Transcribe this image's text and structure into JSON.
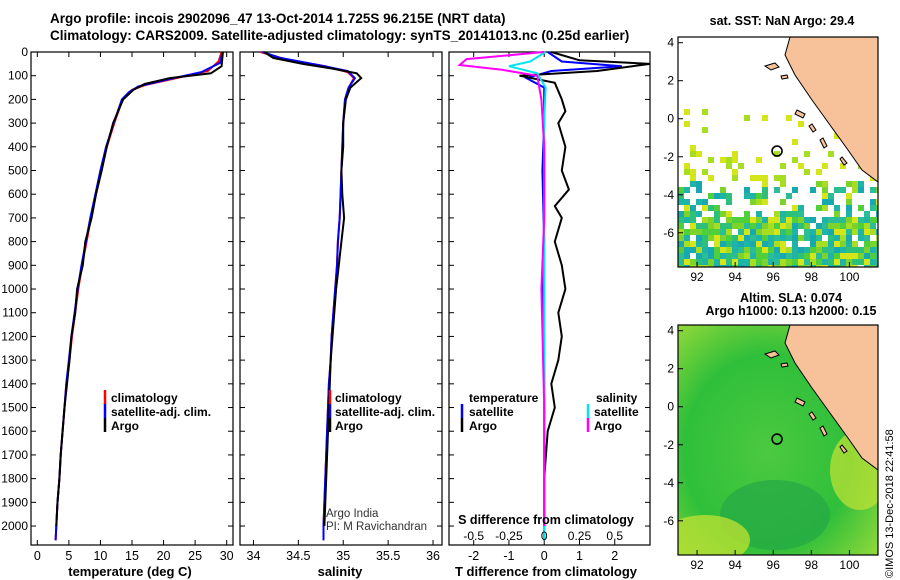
{
  "title_line1": "Argo profile: incois 2902096_47 13-Oct-2014 1.725S 96.215E (NRT data)",
  "title_line2": "Climatology: CARS2009. Satellite-adjusted climatology: synTS_20141013.nc (0.25d earlier)",
  "sst_label": "sat. SST: NaN Argo: 29.4",
  "altim_label1": "Altim. SLA: 0.074",
  "altim_label2": "Argo h1000: 0.13 h2000: 0.15",
  "imos_stamp": "©IMOS 13-Dec-2018 22:41:58",
  "credit_line1": "Argo India",
  "credit_line2": "PI: M Ravichandran",
  "colors": {
    "climatology": "#ff0000",
    "satellite": "#0000ff",
    "argo": "#000000",
    "salinity_sat": "#00e5ee",
    "salinity_argo": "#ff00ff",
    "land": "#f7c299",
    "float_marker": "#000000"
  },
  "chart_data": [
    {
      "type": "line",
      "name": "temperature",
      "xlabel": "temperature (deg C)",
      "ylabel": "",
      "xlim": [
        -1,
        31
      ],
      "ylim": [
        2080,
        0
      ],
      "xticks": [
        0,
        5,
        10,
        15,
        20,
        25,
        30
      ],
      "yticks": [
        0,
        100,
        200,
        300,
        400,
        500,
        600,
        700,
        800,
        900,
        1000,
        1100,
        1200,
        1300,
        1400,
        1500,
        1600,
        1700,
        1800,
        1900,
        2000
      ],
      "legend": [
        "climatology",
        "satellite-adj. clim.",
        "Argo"
      ],
      "series": [
        {
          "name": "climatology",
          "color": "#ff0000",
          "points": [
            [
              29.2,
              0
            ],
            [
              28.7,
              40
            ],
            [
              27,
              80
            ],
            [
              22,
              110
            ],
            [
              17,
              140
            ],
            [
              15,
              160
            ],
            [
              13.5,
              200
            ],
            [
              12.2,
              300
            ],
            [
              11,
              400
            ],
            [
              10.1,
              500
            ],
            [
              9.3,
              600
            ],
            [
              8.5,
              700
            ],
            [
              7.8,
              800
            ],
            [
              7.1,
              900
            ],
            [
              6.5,
              1000
            ],
            [
              6,
              1100
            ],
            [
              5.5,
              1200
            ],
            [
              5.1,
              1300
            ],
            [
              4.6,
              1400
            ],
            [
              4.3,
              1500
            ],
            [
              4,
              1600
            ],
            [
              3.7,
              1700
            ],
            [
              3.5,
              1800
            ],
            [
              3.2,
              1900
            ],
            [
              3,
              2000
            ],
            [
              2.9,
              2060
            ]
          ]
        },
        {
          "name": "satellite-adj. clim.",
          "color": "#0000ff",
          "points": [
            [
              29.3,
              0
            ],
            [
              29,
              45
            ],
            [
              26,
              85
            ],
            [
              20,
              120
            ],
            [
              16,
              145
            ],
            [
              14.5,
              170
            ],
            [
              13.4,
              200
            ],
            [
              12.1,
              300
            ],
            [
              10.9,
              400
            ],
            [
              10,
              500
            ],
            [
              9.2,
              600
            ],
            [
              8.4,
              700
            ],
            [
              7.7,
              800
            ],
            [
              7,
              900
            ],
            [
              6.4,
              1000
            ],
            [
              5.9,
              1100
            ],
            [
              5.4,
              1200
            ],
            [
              5,
              1300
            ],
            [
              4.6,
              1400
            ],
            [
              4.3,
              1500
            ],
            [
              4,
              1600
            ],
            [
              3.7,
              1700
            ],
            [
              3.5,
              1800
            ],
            [
              3.2,
              1900
            ],
            [
              3,
              2000
            ],
            [
              2.9,
              2060
            ]
          ]
        },
        {
          "name": "Argo",
          "color": "#000000",
          "points": [
            [
              29.4,
              0
            ],
            [
              29.2,
              60
            ],
            [
              27.5,
              90
            ],
            [
              21,
              110
            ],
            [
              17,
              135
            ],
            [
              15.2,
              160
            ],
            [
              13.6,
              200
            ],
            [
              12,
              300
            ],
            [
              11,
              400
            ],
            [
              10.2,
              500
            ],
            [
              9.3,
              600
            ],
            [
              8.6,
              700
            ],
            [
              7.6,
              800
            ],
            [
              7.2,
              900
            ],
            [
              6.3,
              1000
            ],
            [
              6,
              1100
            ],
            [
              5.4,
              1200
            ],
            [
              5.1,
              1300
            ],
            [
              4.7,
              1400
            ],
            [
              4.3,
              1500
            ],
            [
              4,
              1600
            ],
            [
              3.7,
              1700
            ],
            [
              3.5,
              1800
            ],
            [
              3.2,
              1900
            ],
            [
              3,
              2000
            ]
          ]
        }
      ]
    },
    {
      "type": "line",
      "name": "salinity",
      "xlabel": "salinity",
      "ylabel": "",
      "xlim": [
        33.85,
        36.1
      ],
      "ylim": [
        2080,
        0
      ],
      "xticks": [
        34,
        34.5,
        35,
        35.5,
        36
      ],
      "legend": [
        "climatology",
        "satellite-adj. clim.",
        "Argo"
      ],
      "series": [
        {
          "name": "climatology",
          "color": "#ff0000",
          "points": [
            [
              34.08,
              0
            ],
            [
              34.35,
              30
            ],
            [
              34.8,
              60
            ],
            [
              35.05,
              85
            ],
            [
              35.12,
              110
            ],
            [
              35.06,
              150
            ],
            [
              35.02,
              200
            ],
            [
              35,
              300
            ],
            [
              34.99,
              400
            ],
            [
              34.98,
              500
            ],
            [
              34.97,
              600
            ],
            [
              34.96,
              700
            ],
            [
              34.94,
              800
            ],
            [
              34.93,
              900
            ],
            [
              34.91,
              1000
            ],
            [
              34.89,
              1100
            ],
            [
              34.87,
              1200
            ],
            [
              34.86,
              1300
            ],
            [
              34.84,
              1400
            ],
            [
              34.83,
              1500
            ],
            [
              34.82,
              1600
            ],
            [
              34.81,
              1700
            ],
            [
              34.8,
              1800
            ],
            [
              34.79,
              1900
            ],
            [
              34.78,
              2000
            ],
            [
              34.78,
              2060
            ]
          ]
        },
        {
          "name": "satellite-adj. clim.",
          "color": "#0000ff",
          "points": [
            [
              34.1,
              0
            ],
            [
              34.3,
              25
            ],
            [
              34.72,
              55
            ],
            [
              35.05,
              80
            ],
            [
              35.13,
              110
            ],
            [
              35.06,
              150
            ],
            [
              35.02,
              200
            ],
            [
              35,
              300
            ],
            [
              34.99,
              400
            ],
            [
              34.98,
              500
            ],
            [
              34.97,
              600
            ],
            [
              34.96,
              700
            ],
            [
              34.94,
              800
            ],
            [
              34.93,
              900
            ],
            [
              34.91,
              1000
            ],
            [
              34.89,
              1100
            ],
            [
              34.87,
              1200
            ],
            [
              34.86,
              1300
            ],
            [
              34.84,
              1400
            ],
            [
              34.83,
              1500
            ],
            [
              34.82,
              1600
            ],
            [
              34.81,
              1700
            ],
            [
              34.8,
              1800
            ],
            [
              34.79,
              1900
            ],
            [
              34.78,
              2000
            ],
            [
              34.78,
              2060
            ]
          ]
        },
        {
          "name": "Argo",
          "color": "#000000",
          "points": [
            [
              34.12,
              0
            ],
            [
              34.22,
              25
            ],
            [
              34.55,
              50
            ],
            [
              34.88,
              70
            ],
            [
              35.15,
              90
            ],
            [
              35.2,
              110
            ],
            [
              35.08,
              150
            ],
            [
              35.03,
              200
            ],
            [
              35,
              300
            ],
            [
              35,
              400
            ],
            [
              34.98,
              500
            ],
            [
              34.99,
              600
            ],
            [
              35.01,
              700
            ],
            [
              34.98,
              800
            ],
            [
              34.95,
              900
            ],
            [
              34.92,
              1000
            ],
            [
              34.9,
              1100
            ],
            [
              34.88,
              1200
            ],
            [
              34.86,
              1300
            ],
            [
              34.85,
              1400
            ],
            [
              34.84,
              1500
            ],
            [
              34.83,
              1600
            ],
            [
              34.82,
              1700
            ],
            [
              34.81,
              1800
            ],
            [
              34.8,
              1900
            ],
            [
              34.79,
              2000
            ]
          ]
        }
      ]
    },
    {
      "type": "line",
      "name": "differences",
      "xlabel": "T difference from climatology",
      "top_axis_label": "S difference from climatology",
      "xlim": [
        -2.7,
        3.0
      ],
      "ylim": [
        2080,
        0
      ],
      "xticks": [
        -2,
        -1,
        0,
        1,
        2
      ],
      "xtick_labels_salinity": [
        "-0.5",
        "-0.25",
        "0",
        "0.25",
        "0.5"
      ],
      "salinity_scale_per_T_unit": 0.25,
      "legend_temperature": [
        "satellite",
        "Argo"
      ],
      "legend_salinity": [
        "satellite",
        "Argo"
      ],
      "series": [
        {
          "name": "T satellite",
          "color": "#0000ff",
          "points": [
            [
              0.1,
              0
            ],
            [
              0.5,
              40
            ],
            [
              2.2,
              60
            ],
            [
              0.2,
              80
            ],
            [
              -0.5,
              110
            ],
            [
              0,
              150
            ],
            [
              0,
              300
            ],
            [
              -0.05,
              500
            ],
            [
              0,
              800
            ],
            [
              -0.05,
              1000
            ],
            [
              0,
              1200
            ],
            [
              0,
              1500
            ],
            [
              0,
              2000
            ],
            [
              0,
              2060
            ]
          ]
        },
        {
          "name": "T Argo",
          "color": "#000000",
          "points": [
            [
              0.2,
              0
            ],
            [
              1,
              35
            ],
            [
              3,
              50
            ],
            [
              1.5,
              80
            ],
            [
              -0.7,
              100
            ],
            [
              0.3,
              130
            ],
            [
              0.5,
              200
            ],
            [
              0.6,
              250
            ],
            [
              0.4,
              300
            ],
            [
              0.6,
              400
            ],
            [
              0.5,
              500
            ],
            [
              0.7,
              580
            ],
            [
              0.3,
              650
            ],
            [
              0.5,
              700
            ],
            [
              0.3,
              800
            ],
            [
              0.5,
              900
            ],
            [
              0.6,
              1000
            ],
            [
              0.4,
              1100
            ],
            [
              0.5,
              1200
            ],
            [
              0.4,
              1300
            ],
            [
              0.2,
              1400
            ],
            [
              0.3,
              1500
            ],
            [
              0.1,
              1600
            ],
            [
              0,
              1800
            ],
            [
              0,
              2000
            ]
          ]
        },
        {
          "name": "S satellite",
          "color": "#00e5ee",
          "points": [
            [
              0.01,
              0
            ],
            [
              -0.1,
              40
            ],
            [
              -0.25,
              60
            ],
            [
              -0.05,
              90
            ],
            [
              0.01,
              150
            ],
            [
              0,
              300
            ],
            [
              0,
              800
            ],
            [
              0,
              1500
            ],
            [
              0,
              2060
            ]
          ]
        },
        {
          "name": "S Argo",
          "color": "#ff00ff",
          "points": [
            [
              0,
              0
            ],
            [
              -0.55,
              30
            ],
            [
              -0.6,
              55
            ],
            [
              -0.3,
              75
            ],
            [
              -0.05,
              100
            ],
            [
              -0.02,
              200
            ],
            [
              0,
              400
            ],
            [
              0,
              700
            ],
            [
              -0.02,
              1000
            ],
            [
              0,
              1500
            ],
            [
              0,
              2000
            ]
          ]
        }
      ]
    },
    {
      "type": "heatmap",
      "name": "sst_map",
      "title": "sat. SST: NaN Argo: 29.4",
      "xlim": [
        91,
        101.5
      ],
      "ylim": [
        -7.8,
        4.3
      ],
      "xticks": [
        92,
        94,
        96,
        98,
        100
      ],
      "yticks": [
        4,
        2,
        0,
        -2,
        -4,
        -6
      ],
      "float_position": [
        96.2,
        -1.7
      ]
    },
    {
      "type": "heatmap",
      "name": "sla_map",
      "title": "Altim. SLA: 0.074 / Argo h1000: 0.13 h2000: 0.15",
      "xlim": [
        91,
        101.5
      ],
      "ylim": [
        -7.8,
        4.3
      ],
      "xticks": [
        92,
        94,
        96,
        98,
        100
      ],
      "yticks": [
        4,
        2,
        0,
        -2,
        -4,
        -6
      ],
      "float_position": [
        96.2,
        -1.7
      ]
    }
  ]
}
